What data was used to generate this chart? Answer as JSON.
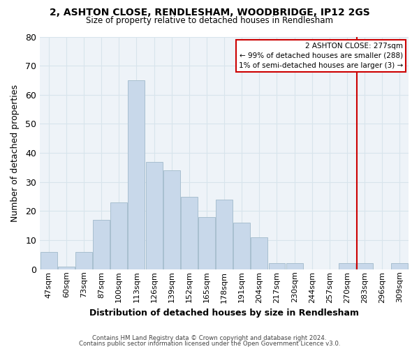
{
  "title": "2, ASHTON CLOSE, RENDLESHAM, WOODBRIDGE, IP12 2GS",
  "subtitle": "Size of property relative to detached houses in Rendlesham",
  "xlabel": "Distribution of detached houses by size in Rendlesham",
  "ylabel": "Number of detached properties",
  "footer_lines": [
    "Contains HM Land Registry data © Crown copyright and database right 2024.",
    "Contains public sector information licensed under the Open Government Licence v3.0."
  ],
  "bin_labels": [
    "47sqm",
    "60sqm",
    "73sqm",
    "87sqm",
    "100sqm",
    "113sqm",
    "126sqm",
    "139sqm",
    "152sqm",
    "165sqm",
    "178sqm",
    "191sqm",
    "204sqm",
    "217sqm",
    "230sqm",
    "244sqm",
    "257sqm",
    "270sqm",
    "283sqm",
    "296sqm",
    "309sqm"
  ],
  "bar_values": [
    6,
    1,
    6,
    17,
    23,
    65,
    37,
    34,
    25,
    18,
    24,
    16,
    11,
    2,
    2,
    0,
    0,
    2,
    2,
    0,
    2
  ],
  "bar_color": "#c8d8ea",
  "bar_edge_color": "#a8bfd0",
  "grid_color": "#d8e4ec",
  "annotation_title": "2 ASHTON CLOSE: 277sqm",
  "annotation_line1": "← 99% of detached houses are smaller (288)",
  "annotation_line2": "1% of semi-detached houses are larger (3) →",
  "annotation_box_color": "#cc0000",
  "ref_line_color": "#cc0000",
  "ylim": [
    0,
    80
  ],
  "yticks": [
    0,
    10,
    20,
    30,
    40,
    50,
    60,
    70,
    80
  ],
  "bg_color": "#ffffff",
  "plot_bg_color": "#eef3f8"
}
